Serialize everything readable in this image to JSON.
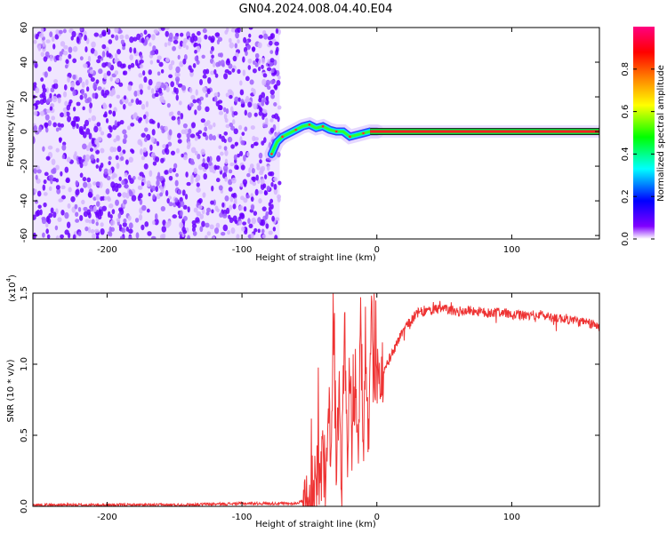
{
  "title": "GN04.2024.008.04.40.E04",
  "chart_data": [
    {
      "type": "heatmap",
      "xlabel": "Height of straight line (km)",
      "ylabel": "Frequency (Hz)",
      "xlim": [
        -255,
        165
      ],
      "ylim": [
        -62,
        60
      ],
      "x_ticks": [
        -200,
        -100,
        0,
        100
      ],
      "y_ticks": [
        60,
        40,
        20,
        0,
        -20,
        -40,
        -60
      ],
      "colorbar": {
        "label": "Normalized spectral amplitude",
        "range": [
          0.0,
          1.0
        ],
        "ticks": [
          0.0,
          0.2,
          0.4,
          0.6,
          0.8
        ],
        "colors": [
          "#ffffff",
          "#8000ff",
          "#0000ff",
          "#00ffff",
          "#00ff00",
          "#ffff00",
          "#ff8000",
          "#ff0000",
          "#ff0080"
        ]
      },
      "regions": [
        {
          "x_range": [
            -255,
            -72
          ],
          "freq_range": [
            -62,
            60
          ],
          "amplitude": 0.1,
          "pattern": "broadband noise"
        },
        {
          "x_range": [
            -78,
            -5
          ],
          "freq_range": [
            -15,
            8
          ],
          "amplitude": 0.5,
          "pattern": "curved signal track"
        },
        {
          "x_range": [
            -5,
            165
          ],
          "freq": 0,
          "amplitude": 0.95,
          "pattern": "steady carrier"
        }
      ],
      "signal_track": [
        {
          "x": -78,
          "freq": -13
        },
        {
          "x": -74,
          "freq": -6
        },
        {
          "x": -70,
          "freq": -3
        },
        {
          "x": -65,
          "freq": -1
        },
        {
          "x": -60,
          "freq": 1
        },
        {
          "x": -55,
          "freq": 3
        },
        {
          "x": -50,
          "freq": 4
        },
        {
          "x": -45,
          "freq": 2
        },
        {
          "x": -40,
          "freq": 3
        },
        {
          "x": -35,
          "freq": 1
        },
        {
          "x": -30,
          "freq": 0
        },
        {
          "x": -25,
          "freq": 0
        },
        {
          "x": -20,
          "freq": -3
        },
        {
          "x": -15,
          "freq": -2
        },
        {
          "x": -10,
          "freq": -1
        },
        {
          "x": -5,
          "freq": 0
        },
        {
          "x": 0,
          "freq": 0
        }
      ]
    },
    {
      "type": "line",
      "xlabel": "Height of straight line (km)",
      "ylabel": "SNR (10 * v/v)",
      "y_multiplier": "(x10",
      "y_multiplier_exp": "4",
      "y_multiplier_close": ")",
      "xlim": [
        -255,
        165
      ],
      "ylim": [
        0,
        1.5
      ],
      "x_ticks": [
        -200,
        -100,
        0,
        100
      ],
      "y_ticks": [
        0.0,
        0.5,
        1.0,
        1.5
      ],
      "y_tick_labels": [
        "0.0",
        "0.5",
        "1.0",
        "1.5"
      ],
      "line_color": "#ee3333",
      "series": [
        {
          "x": [
            -255,
            -200,
            -150,
            -100,
            -60,
            -52,
            -48,
            -45,
            -42,
            -40,
            -38,
            -36,
            -34,
            -32,
            -30,
            -28,
            -26,
            -24,
            -22,
            -20,
            -18,
            -16,
            -14,
            -12,
            -10,
            -8,
            -6,
            -4,
            -2,
            0,
            5,
            10,
            15,
            20,
            25,
            30,
            40,
            50,
            60,
            70,
            80,
            90,
            100,
            110,
            120,
            130,
            140,
            150,
            160,
            165
          ],
          "y": [
            0.01,
            0.01,
            0.01,
            0.02,
            0.02,
            0.05,
            0.1,
            0.2,
            0.1,
            0.4,
            0.1,
            0.9,
            0.2,
            1.2,
            0.3,
            0.8,
            0.2,
            1.3,
            0.4,
            1.0,
            0.3,
            0.9,
            0.4,
            1.2,
            0.5,
            0.8,
            0.5,
            1.45,
            0.6,
            0.9,
            0.95,
            1.05,
            1.15,
            1.25,
            1.3,
            1.36,
            1.38,
            1.39,
            1.37,
            1.38,
            1.36,
            1.37,
            1.35,
            1.34,
            1.35,
            1.33,
            1.32,
            1.3,
            1.28,
            1.26
          ]
        }
      ]
    }
  ]
}
